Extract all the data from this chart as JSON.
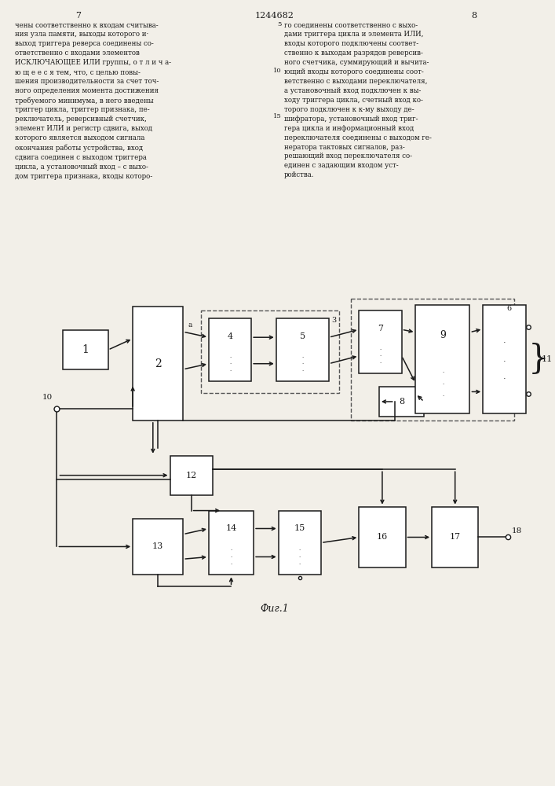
{
  "bg": "#f2efe8",
  "ec": "#1a1a1a",
  "fc": "#ffffff",
  "tc": "#1a1a1a",
  "title": "1244682",
  "page_l": "7",
  "page_r": "8",
  "fig_label": "Фиг.1"
}
